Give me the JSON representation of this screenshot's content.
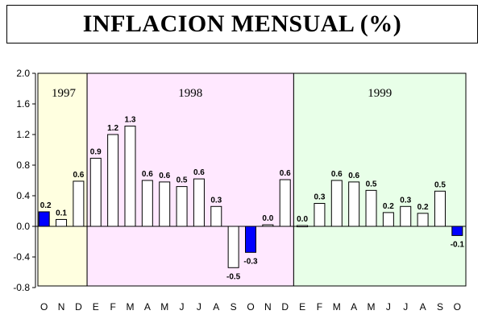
{
  "chart_data": {
    "type": "bar",
    "title": "INFLACION MENSUAL (%)",
    "xlabel": "",
    "ylabel": "",
    "ylim": [
      -0.8,
      2.0
    ],
    "yticks": [
      "2.0",
      "1.6",
      "1.2",
      "0.8",
      "0.4",
      "0.0",
      "-0.4",
      "-0.8"
    ],
    "categories": [
      "O",
      "N",
      "D",
      "E",
      "F",
      "M",
      "A",
      "M",
      "J",
      "J",
      "A",
      "S",
      "O",
      "N",
      "D",
      "E",
      "F",
      "M",
      "A",
      "M",
      "J",
      "J",
      "A",
      "S",
      "O"
    ],
    "values": [
      0.19,
      0.09,
      0.59,
      0.89,
      1.2,
      1.31,
      0.6,
      0.58,
      0.52,
      0.62,
      0.26,
      -0.54,
      -0.34,
      0.02,
      0.61,
      0.01,
      0.3,
      0.6,
      0.58,
      0.47,
      0.18,
      0.26,
      0.17,
      0.46,
      -0.12
    ],
    "data_labels": [
      "0.2",
      "0.1",
      "0.6",
      "0.9",
      "1.2",
      "1.3",
      "0.6",
      "0.6",
      "0.5",
      "0.6",
      "0.3",
      "-0.5",
      "-0.3",
      "0.0",
      "0.6",
      "0.0",
      "0.3",
      "0.6",
      "0.6",
      "0.5",
      "0.2",
      "0.3",
      "0.2",
      "0.5",
      "-0.1"
    ],
    "highlighted": [
      true,
      false,
      false,
      false,
      false,
      false,
      false,
      false,
      false,
      false,
      false,
      false,
      true,
      false,
      false,
      false,
      false,
      false,
      false,
      false,
      false,
      false,
      false,
      false,
      true
    ],
    "periods": [
      {
        "label": "1997",
        "start": 0,
        "end": 2,
        "color": "#ffffe0"
      },
      {
        "label": "1998",
        "start": 3,
        "end": 14,
        "color": "#ffe8ff"
      },
      {
        "label": "1999",
        "start": 15,
        "end": 24,
        "color": "#e8ffe8"
      }
    ],
    "colors": {
      "bar": "#ffffff",
      "highlight": "#0000ff",
      "outline": "#000000"
    },
    "grid": false,
    "legend": "none"
  }
}
